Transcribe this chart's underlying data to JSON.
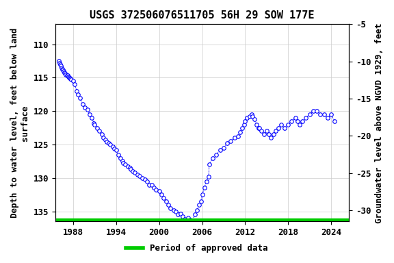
{
  "title": "USGS 372506076511705 56H 29 SOW 177E",
  "xlabel": "",
  "ylabel_left": "Depth to water level, feet below land\nsurface",
  "ylabel_right": "Groundwater level above NGVD 1929, feet",
  "ylim_left": [
    136.5,
    107.0
  ],
  "ylim_right": [
    -31.5,
    -7.0
  ],
  "xlim": [
    1985.5,
    2026.5
  ],
  "xticks": [
    1988,
    1994,
    2000,
    2006,
    2012,
    2018,
    2024
  ],
  "yticks_left": [
    110,
    115,
    120,
    125,
    130,
    135
  ],
  "yticks_right": [
    -5,
    -10,
    -15,
    -20,
    -25,
    -30
  ],
  "marker_color": "blue",
  "line_color": "blue",
  "legend_label": "Period of approved data",
  "legend_color": "#00cc00",
  "background_color": "#ffffff",
  "grid_color": "#cccccc",
  "title_fontsize": 11,
  "label_fontsize": 9,
  "tick_fontsize": 9,
  "data_x": [
    1986.0,
    1986.1,
    1986.2,
    1986.3,
    1986.4,
    1986.5,
    1986.6,
    1986.7,
    1986.8,
    1986.9,
    1987.0,
    1987.1,
    1987.2,
    1987.3,
    1987.4,
    1987.5,
    1987.6,
    1987.7,
    1988.0,
    1988.2,
    1988.5,
    1988.7,
    1989.0,
    1989.3,
    1989.6,
    1990.0,
    1990.3,
    1990.6,
    1990.9,
    1991.0,
    1991.3,
    1991.6,
    1992.0,
    1992.2,
    1992.5,
    1992.7,
    1993.0,
    1993.2,
    1993.5,
    1993.7,
    1994.0,
    1994.3,
    1994.6,
    1994.9,
    1995.0,
    1995.3,
    1995.6,
    1995.9,
    1996.0,
    1996.3,
    1996.6,
    1997.0,
    1997.3,
    1997.6,
    1998.0,
    1998.3,
    1998.6,
    1999.0,
    1999.3,
    1999.6,
    2000.0,
    2000.3,
    2000.6,
    2001.0,
    2001.3,
    2001.6,
    2002.0,
    2002.3,
    2002.6,
    2003.0,
    2003.3,
    2003.6,
    2004.0,
    2004.3,
    2004.6,
    2005.0,
    2005.3,
    2005.6,
    2005.9,
    2006.0,
    2006.3,
    2006.6,
    2006.9,
    2007.0,
    2007.5,
    2008.0,
    2008.5,
    2009.0,
    2009.5,
    2010.0,
    2010.5,
    2011.0,
    2011.3,
    2011.6,
    2011.9,
    2012.0,
    2012.3,
    2012.6,
    2012.9,
    2013.0,
    2013.3,
    2013.6,
    2013.9,
    2014.0,
    2014.3,
    2014.6,
    2015.0,
    2015.3,
    2015.6,
    2016.0,
    2016.3,
    2016.6,
    2017.0,
    2017.5,
    2018.0,
    2018.5,
    2019.0,
    2019.3,
    2019.6,
    2020.0,
    2020.5,
    2021.0,
    2021.5,
    2022.0,
    2022.5,
    2023.0,
    2023.5,
    2024.0,
    2024.5
  ],
  "data_y": [
    112.5,
    112.8,
    113.0,
    113.2,
    113.5,
    113.7,
    113.8,
    114.0,
    114.2,
    114.3,
    114.5,
    114.6,
    114.7,
    114.9,
    115.0,
    115.1,
    115.2,
    115.3,
    115.5,
    116.0,
    117.0,
    117.5,
    118.0,
    119.0,
    119.5,
    119.8,
    120.5,
    121.0,
    121.8,
    122.0,
    122.5,
    123.0,
    123.5,
    124.0,
    124.3,
    124.6,
    124.8,
    125.0,
    125.3,
    125.6,
    125.8,
    126.5,
    127.0,
    127.5,
    127.8,
    128.0,
    128.3,
    128.5,
    128.7,
    129.0,
    129.2,
    129.5,
    129.7,
    130.0,
    130.2,
    130.5,
    131.0,
    131.0,
    131.5,
    131.8,
    132.0,
    132.5,
    133.0,
    133.5,
    134.0,
    134.5,
    134.8,
    135.0,
    135.5,
    135.3,
    135.8,
    136.2,
    136.0,
    136.3,
    136.5,
    135.5,
    134.8,
    134.0,
    133.5,
    132.5,
    131.5,
    130.5,
    129.8,
    128.0,
    127.0,
    126.5,
    125.8,
    125.5,
    124.8,
    124.5,
    124.0,
    123.8,
    123.2,
    122.5,
    122.0,
    121.5,
    121.0,
    120.8,
    120.5,
    120.8,
    121.2,
    122.0,
    122.5,
    122.5,
    123.0,
    123.5,
    123.0,
    123.5,
    124.0,
    123.5,
    123.0,
    122.5,
    122.0,
    122.5,
    122.0,
    121.5,
    121.0,
    121.5,
    122.0,
    121.5,
    121.0,
    120.5,
    120.0,
    120.0,
    120.5,
    120.5,
    121.0,
    120.5,
    121.5
  ]
}
